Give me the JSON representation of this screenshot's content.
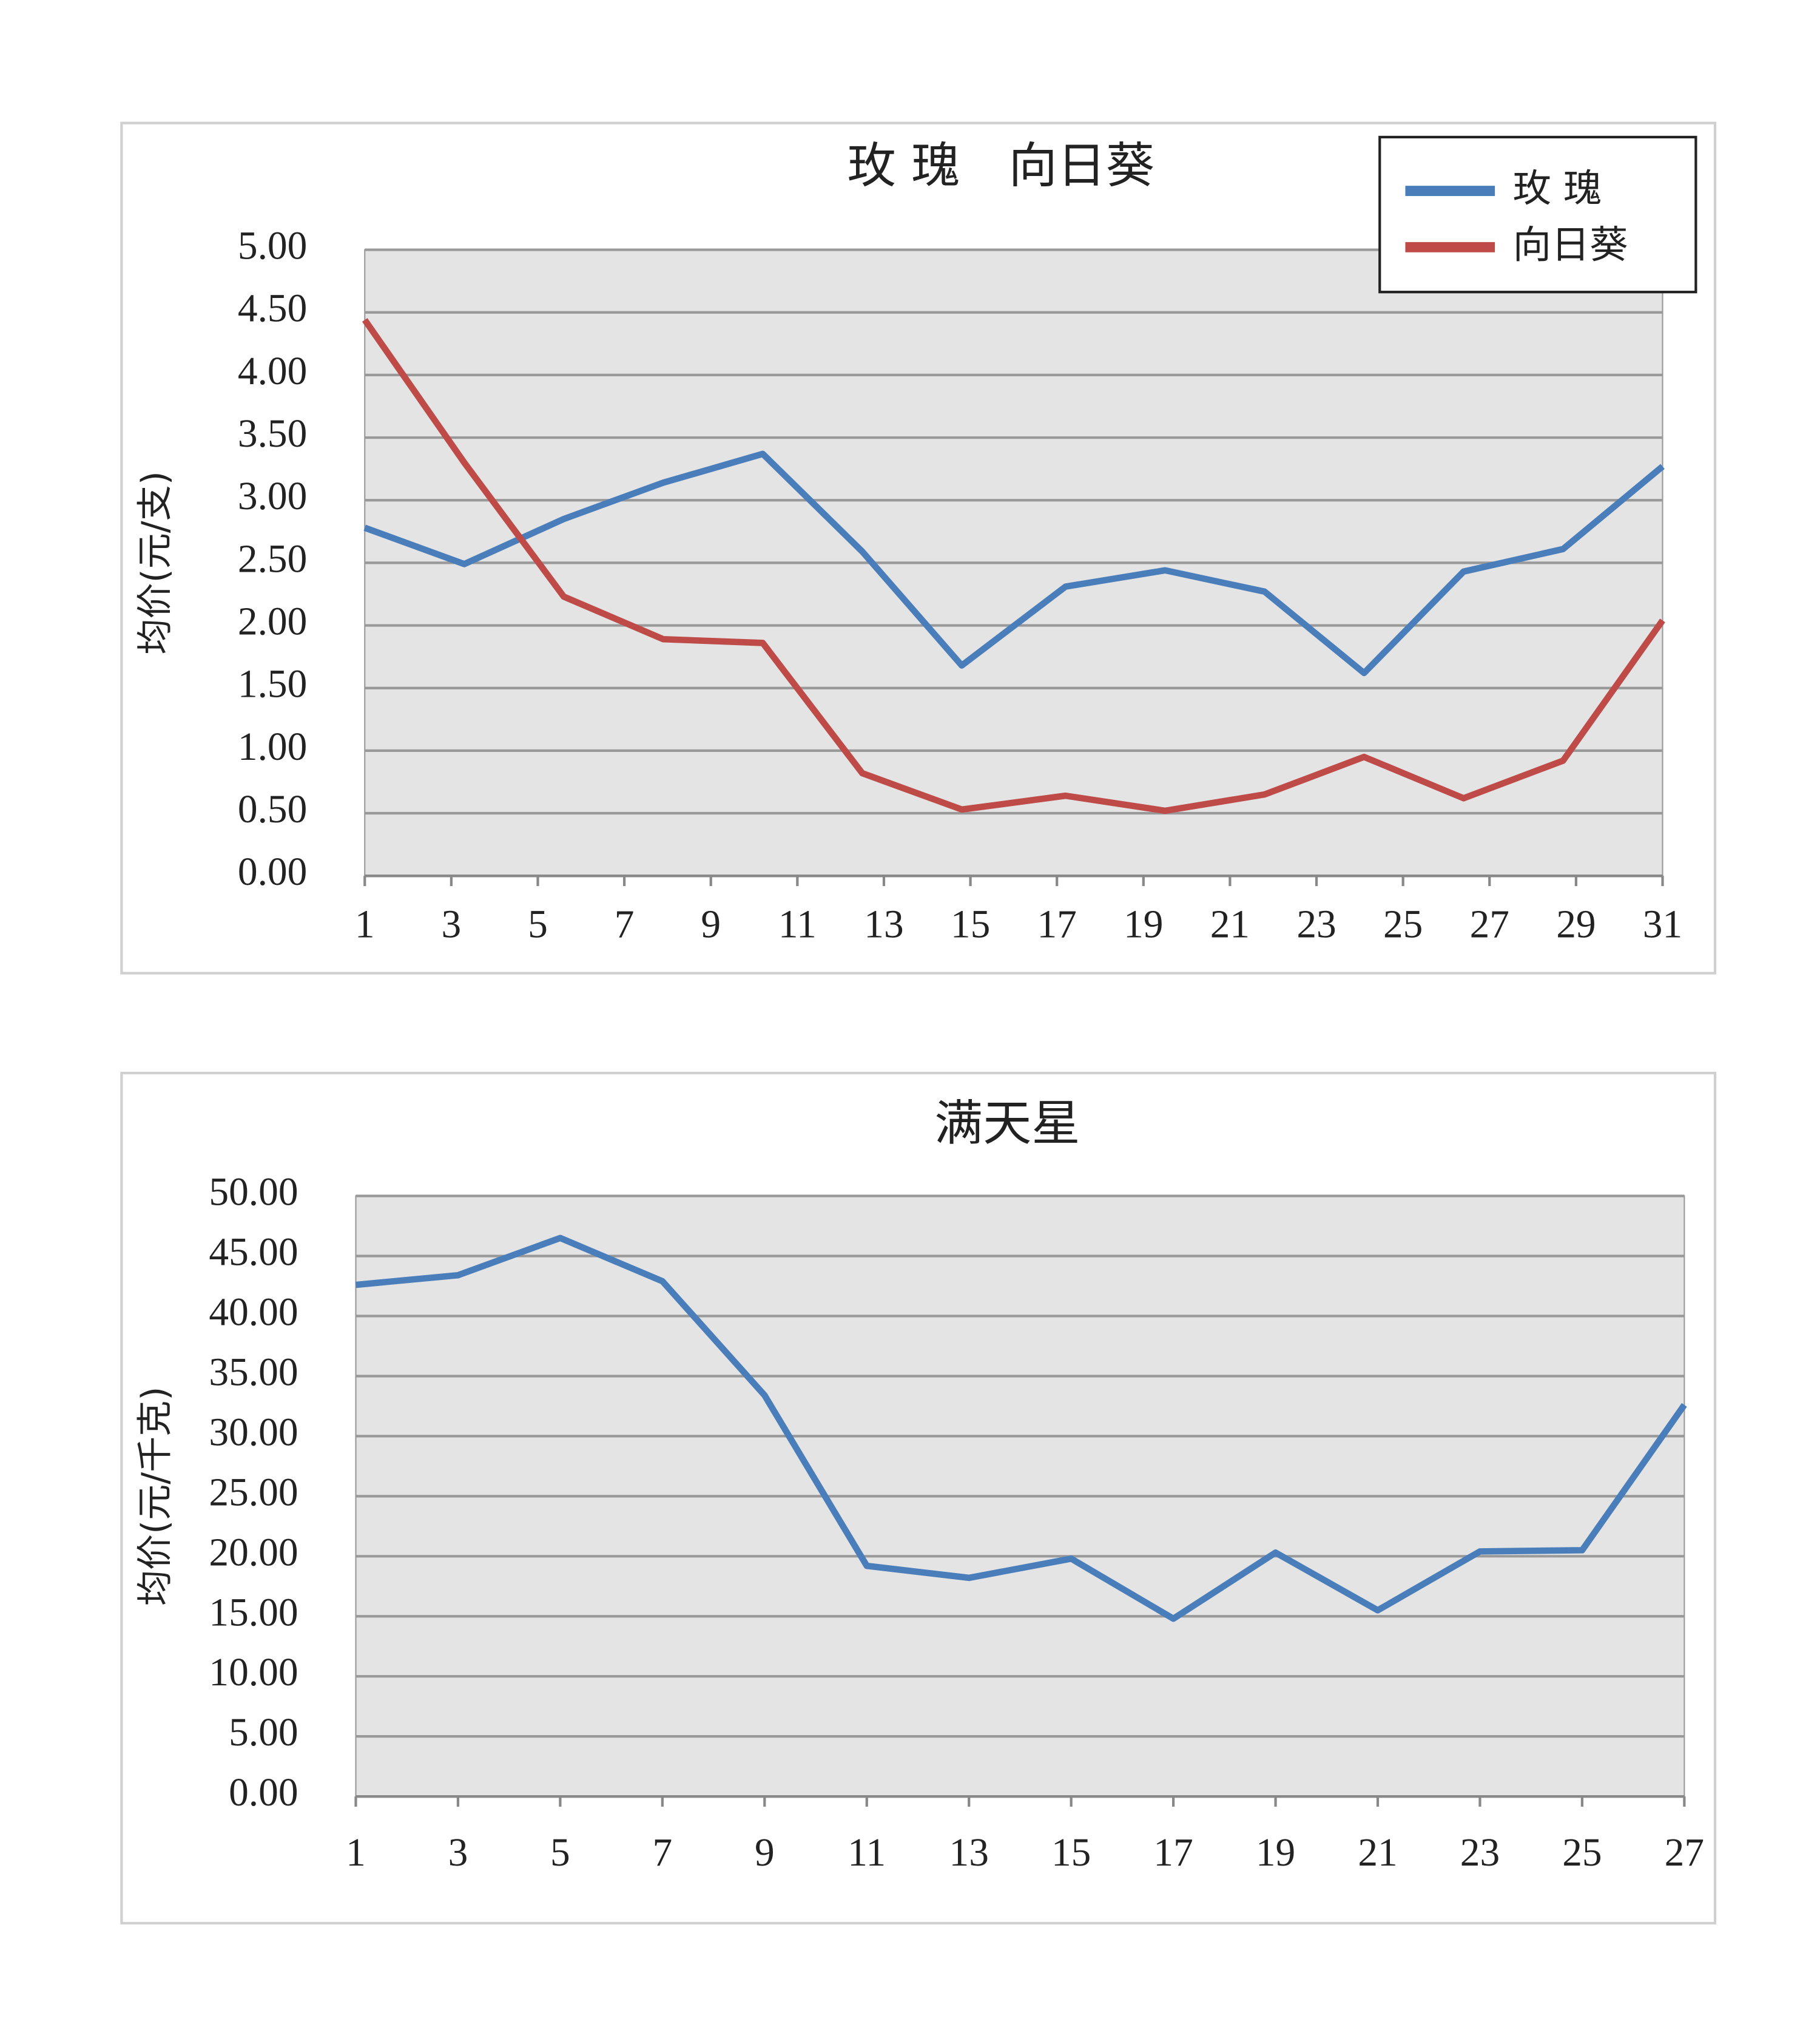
{
  "chart_data": [
    {
      "type": "line",
      "title": "玫 瑰　向日葵",
      "y_label": "均价(元/支)",
      "x": [
        1,
        3.3,
        5.6,
        7.9,
        10.2,
        12.5,
        14.8,
        17.2,
        19.5,
        21.8,
        24.1,
        26.4,
        28.7,
        31
      ],
      "xlim": [
        1,
        31
      ],
      "xticks": [
        1,
        3,
        5,
        7,
        9,
        11,
        13,
        15,
        17,
        19,
        21,
        23,
        25,
        27,
        29,
        31
      ],
      "ylim": [
        0,
        5
      ],
      "yticks": [
        {
          "value": 0,
          "label": "0.00"
        },
        {
          "value": 0.5,
          "label": "0.50"
        },
        {
          "value": 1,
          "label": "1.00"
        },
        {
          "value": 1.5,
          "label": "1.50"
        },
        {
          "value": 2,
          "label": "2.00"
        },
        {
          "value": 2.5,
          "label": "2.50"
        },
        {
          "value": 3,
          "label": "3.00"
        },
        {
          "value": 3.5,
          "label": "3.50"
        },
        {
          "value": 4,
          "label": "4.00"
        },
        {
          "value": 4.5,
          "label": "4.50"
        },
        {
          "value": 5,
          "label": "5.00"
        }
      ],
      "grid": true,
      "legend": "upper right",
      "series": [
        {
          "name": "玫 瑰",
          "color": "#4a7ebb",
          "values": [
            2.78,
            2.49,
            2.85,
            3.14,
            3.37,
            2.59,
            1.68,
            2.31,
            2.44,
            2.27,
            1.62,
            2.43,
            2.61,
            3.27
          ]
        },
        {
          "name": "向日葵",
          "color": "#be4b48",
          "values": [
            4.44,
            3.3,
            2.23,
            1.89,
            1.86,
            0.82,
            0.53,
            0.64,
            0.52,
            0.65,
            0.95,
            0.62,
            0.92,
            2.04
          ]
        }
      ]
    },
    {
      "type": "line",
      "title": "满天星",
      "y_label": "均价(元/千克)",
      "categories": [
        "1",
        "3",
        "5",
        "7",
        "9",
        "11",
        "13",
        "15",
        "17",
        "19",
        "21",
        "23",
        "25",
        "27"
      ],
      "ylim": [
        0,
        50
      ],
      "yticks": [
        {
          "value": 0,
          "label": "0.00"
        },
        {
          "value": 5,
          "label": "5.00"
        },
        {
          "value": 10,
          "label": "10.00"
        },
        {
          "value": 15,
          "label": "15.00"
        },
        {
          "value": 20,
          "label": "20.00"
        },
        {
          "value": 25,
          "label": "25.00"
        },
        {
          "value": 30,
          "label": "30.00"
        },
        {
          "value": 35,
          "label": "35.00"
        },
        {
          "value": 40,
          "label": "40.00"
        },
        {
          "value": 45,
          "label": "45.00"
        },
        {
          "value": 50,
          "label": "50.00"
        }
      ],
      "grid": true,
      "series": [
        {
          "color": "#4a7ebb",
          "values": [
            42.6,
            43.4,
            46.5,
            42.9,
            33.4,
            19.2,
            18.2,
            19.8,
            14.8,
            20.3,
            15.5,
            20.4,
            20.5,
            32.6
          ]
        }
      ]
    }
  ]
}
